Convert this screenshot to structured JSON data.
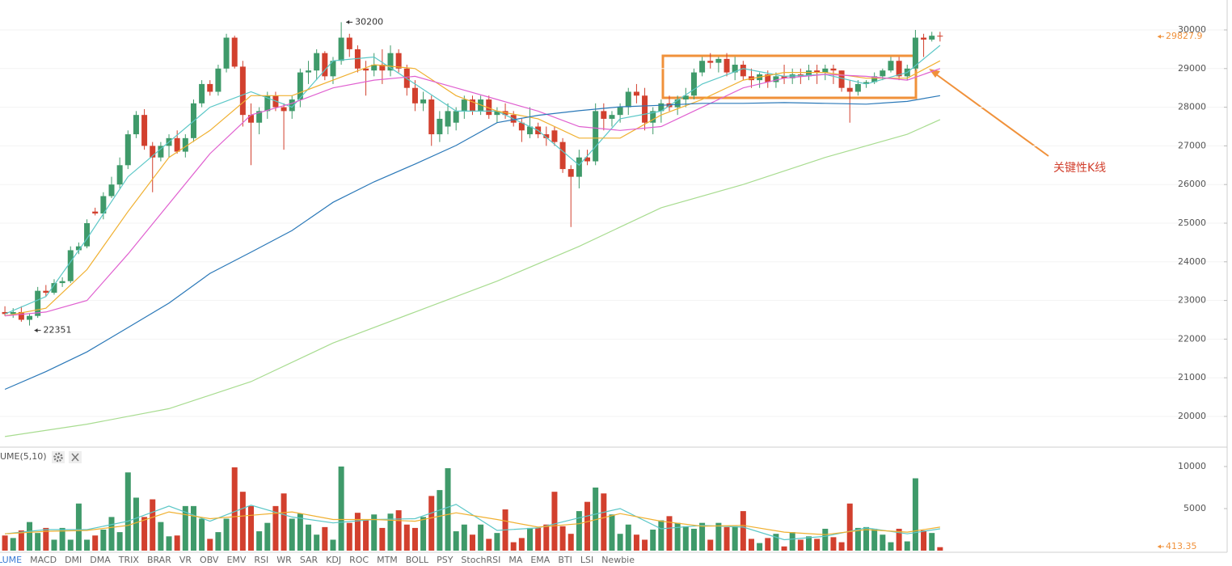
{
  "chart_data": [
    {
      "type": "candlestick",
      "open": [
        22700,
        22650,
        22700,
        22500,
        22600,
        23250,
        23200,
        23450,
        23500,
        24300,
        24400,
        25300,
        25250,
        25700,
        26000,
        26500,
        27300,
        27800,
        27000,
        26700,
        27000,
        27200,
        26850,
        27200,
        28100,
        28600,
        28400,
        29000,
        29800,
        29050,
        27800,
        27600,
        27900,
        28300,
        28000,
        27900,
        28200,
        28900,
        28950,
        29400,
        28800,
        29200,
        29800,
        29500,
        29000,
        28950,
        29100,
        28950,
        29400,
        29000,
        28500,
        28100,
        28200,
        27300,
        27500,
        27600,
        27900,
        28200,
        27900,
        28200,
        27800,
        27900,
        27800,
        27600,
        27300,
        27500,
        27300,
        27400,
        27100,
        26400,
        26200,
        26700,
        26600,
        27900,
        27700,
        27800,
        28000,
        28400,
        28300,
        27600,
        27900,
        28100,
        28000,
        28200,
        28300,
        28900,
        29200,
        29150,
        29250,
        28900,
        29100,
        28800,
        28700,
        28850,
        28650,
        28800,
        28750,
        28850,
        28800,
        28950,
        28900,
        29000,
        28950,
        28500,
        28400,
        28600,
        28650,
        28800,
        28950,
        29200,
        28800,
        29000,
        29800,
        29750,
        29850
      ],
      "high": [
        22850,
        22800,
        22850,
        22650,
        23350,
        23400,
        23550,
        23600,
        24400,
        24500,
        25100,
        25400,
        25800,
        26200,
        26700,
        27400,
        27900,
        27950,
        27100,
        27100,
        27300,
        27400,
        27300,
        28200,
        28700,
        28700,
        29100,
        29900,
        29850,
        29200,
        28100,
        28000,
        28400,
        28400,
        28100,
        28300,
        29000,
        29200,
        29500,
        29450,
        29300,
        30200,
        29900,
        29600,
        29200,
        29400,
        29500,
        29600,
        29500,
        29100,
        28700,
        28400,
        28300,
        27900,
        28100,
        28000,
        28300,
        28300,
        28300,
        28300,
        28000,
        28100,
        27900,
        27700,
        28000,
        27600,
        27500,
        27500,
        27200,
        26500,
        26900,
        26900,
        28100,
        28100,
        27900,
        28100,
        28500,
        28600,
        28500,
        28000,
        28200,
        28300,
        28300,
        28500,
        29000,
        29300,
        29400,
        29300,
        29400,
        29300,
        29200,
        29000,
        28900,
        28950,
        28900,
        29100,
        29000,
        29000,
        29100,
        29100,
        29100,
        29100,
        28950,
        28700,
        28700,
        28700,
        28900,
        29000,
        29300,
        29300,
        29100,
        30000,
        29900,
        29950,
        29950
      ],
      "low": [
        22600,
        22550,
        22450,
        22351,
        22550,
        23100,
        23150,
        23350,
        23450,
        24200,
        24350,
        25200,
        25100,
        25650,
        25900,
        26400,
        27200,
        26900,
        25800,
        26600,
        26700,
        26800,
        26700,
        27100,
        28000,
        28300,
        28300,
        28900,
        29000,
        27500,
        26500,
        27300,
        27700,
        27900,
        26900,
        27700,
        28000,
        28600,
        28700,
        28700,
        28600,
        29100,
        29300,
        28900,
        28300,
        28800,
        28600,
        28800,
        28900,
        28300,
        27900,
        27900,
        27000,
        27100,
        27300,
        27400,
        27700,
        27800,
        27800,
        27700,
        27600,
        27700,
        27500,
        27100,
        27200,
        27200,
        27000,
        27000,
        26300,
        24900,
        25900,
        26500,
        26500,
        27400,
        27500,
        27600,
        27800,
        28100,
        27400,
        27300,
        27600,
        27900,
        27800,
        28000,
        28200,
        28800,
        29000,
        28900,
        28800,
        28700,
        28700,
        28500,
        28500,
        28500,
        28500,
        28600,
        28600,
        28600,
        28700,
        28600,
        28700,
        28600,
        28400,
        27600,
        28300,
        28500,
        28600,
        28700,
        28900,
        28700,
        28700,
        28950,
        29300,
        29700,
        29700
      ],
      "close": [
        22650,
        22700,
        22500,
        22600,
        23250,
        23200,
        23450,
        23500,
        24300,
        24400,
        25000,
        25250,
        25700,
        26000,
        26500,
        27300,
        27800,
        27000,
        26700,
        27000,
        27200,
        26850,
        27200,
        28100,
        28600,
        28400,
        29000,
        29800,
        29050,
        27800,
        27600,
        27900,
        28300,
        28000,
        27900,
        28200,
        28900,
        28950,
        29400,
        28800,
        29200,
        29800,
        29500,
        29000,
        28950,
        29100,
        28950,
        29400,
        29000,
        28500,
        28100,
        28200,
        27300,
        27700,
        27900,
        27900,
        28200,
        27900,
        28200,
        27800,
        27900,
        27800,
        27600,
        27400,
        27500,
        27300,
        27200,
        27100,
        26400,
        26200,
        26700,
        26600,
        27900,
        27700,
        27800,
        28000,
        28400,
        28300,
        27600,
        27900,
        28100,
        28000,
        28200,
        28300,
        28900,
        29200,
        29150,
        29250,
        28900,
        29100,
        28800,
        28700,
        28850,
        28650,
        28800,
        28750,
        28850,
        28800,
        28950,
        28900,
        29000,
        28950,
        28500,
        28400,
        28600,
        28650,
        28800,
        28950,
        29200,
        28800,
        29000,
        29800,
        29750,
        29850,
        29827.9
      ],
      "up_color": "#3f9a6a",
      "down_color": "#d2402e",
      "price_color": "#f0913a",
      "xlim": [
        -0.6,
        149
      ],
      "ylim": [
        19226,
        30774
      ],
      "yticks": [
        20000,
        21000,
        22000,
        23000,
        24000,
        25000,
        26000,
        27000,
        28000,
        29000,
        30000
      ],
      "grid": true,
      "series": [
        {
          "color": "#5bc7c7",
          "x": [
            0,
            5,
            10,
            15,
            20,
            25,
            30,
            35,
            40,
            45,
            50,
            55,
            60,
            65,
            70,
            75,
            80,
            85,
            90,
            95,
            100,
            105,
            110,
            114
          ],
          "values": [
            22650,
            23100,
            24600,
            26200,
            27100,
            28000,
            28400,
            28000,
            29200,
            29300,
            28600,
            27900,
            27900,
            27400,
            26500,
            27700,
            27900,
            28600,
            29000,
            28800,
            28850,
            28600,
            28900,
            29600
          ]
        },
        {
          "color": "#f0b030",
          "x": [
            0,
            5,
            10,
            15,
            20,
            25,
            30,
            35,
            40,
            45,
            50,
            55,
            60,
            65,
            70,
            75,
            80,
            85,
            90,
            95,
            100,
            105,
            110,
            114
          ],
          "values": [
            22600,
            22800,
            23800,
            25300,
            26700,
            27400,
            28300,
            28300,
            28700,
            29100,
            29000,
            28300,
            27900,
            27700,
            27200,
            27200,
            27800,
            28200,
            28700,
            28900,
            28900,
            28750,
            28750,
            29200
          ]
        },
        {
          "color": "#e060d0",
          "x": [
            0,
            5,
            10,
            15,
            20,
            25,
            30,
            35,
            40,
            45,
            50,
            55,
            60,
            65,
            70,
            75,
            80,
            85,
            90,
            95,
            100,
            105,
            110,
            114
          ],
          "values": [
            22600,
            22700,
            23000,
            24200,
            25500,
            26800,
            27800,
            28100,
            28500,
            28700,
            28800,
            28500,
            28200,
            27900,
            27500,
            27400,
            27500,
            28000,
            28500,
            28750,
            28850,
            28800,
            28700,
            29000
          ]
        },
        {
          "color": "#2a78b8",
          "x": [
            0,
            5,
            10,
            15,
            20,
            25,
            30,
            35,
            40,
            45,
            50,
            55,
            60,
            65,
            70,
            75,
            80,
            85,
            90,
            95,
            100,
            105,
            110,
            114
          ],
          "values": [
            20700,
            21160,
            21670,
            22300,
            22930,
            23700,
            24250,
            24810,
            25540,
            26070,
            26530,
            27010,
            27600,
            27790,
            27910,
            28010,
            28050,
            28100,
            28100,
            28120,
            28100,
            28080,
            28150,
            28300
          ]
        },
        {
          "color": "#a8dc90",
          "x": [
            0,
            10,
            20,
            30,
            40,
            50,
            60,
            70,
            80,
            90,
            100,
            110,
            114
          ],
          "values": [
            19480,
            19800,
            20200,
            20900,
            21900,
            22700,
            23500,
            24400,
            25400,
            26000,
            26700,
            27300,
            27680
          ]
        }
      ],
      "annotation": "关键性K线"
    },
    {
      "type": "bar",
      "title": "UME(5,10)",
      "values": [
        1800,
        1500,
        2400,
        3400,
        2100,
        2700,
        1300,
        2700,
        1300,
        5600,
        1300,
        1800,
        2500,
        4000,
        2200,
        9300,
        6300,
        4000,
        6100,
        3400,
        1700,
        1800,
        5300,
        5300,
        3800,
        1400,
        2200,
        3800,
        9900,
        7000,
        5300,
        2300,
        3300,
        5300,
        6800,
        3800,
        4400,
        3100,
        1900,
        2800,
        1300,
        10000,
        3300,
        4500,
        3600,
        4300,
        2700,
        4400,
        4800,
        3100,
        2700,
        4000,
        6500,
        7200,
        9800,
        2300,
        3100,
        1900,
        3100,
        1400,
        2100,
        4900,
        1000,
        1500,
        2700,
        2700,
        3100,
        7000,
        2900,
        2000,
        4700,
        5800,
        7500,
        6800,
        4300,
        2000,
        3100,
        1900,
        1300,
        2500,
        3600,
        4100,
        3300,
        2900,
        2600,
        3300,
        1300,
        3300,
        2800,
        2900,
        4700,
        1400,
        900,
        1500,
        2000,
        500,
        2200,
        1300,
        1700,
        1400,
        2600,
        1600,
        1000,
        5600,
        2700,
        2800,
        2600,
        1900,
        1000,
        2600,
        1100,
        8600,
        2400,
        2100,
        413.35
      ],
      "ylim": [
        0,
        11920
      ],
      "yticks": [
        5000,
        10000
      ],
      "series": [
        {
          "color": "#5bc7c7",
          "x": [
            0,
            5,
            10,
            15,
            20,
            25,
            30,
            35,
            40,
            45,
            50,
            55,
            60,
            65,
            70,
            75,
            80,
            85,
            90,
            95,
            100,
            105,
            110,
            114
          ],
          "values": [
            2000,
            2500,
            2500,
            3500,
            5300,
            3500,
            5400,
            4000,
            3300,
            3700,
            3800,
            5500,
            2400,
            2700,
            3900,
            5000,
            2600,
            3000,
            2800,
            1300,
            1700,
            2700,
            2000,
            2600
          ]
        },
        {
          "color": "#f0b030",
          "x": [
            0,
            5,
            10,
            15,
            20,
            25,
            30,
            35,
            40,
            45,
            50,
            55,
            60,
            65,
            70,
            75,
            80,
            85,
            90,
            95,
            100,
            105,
            110,
            114
          ],
          "values": [
            2000,
            2300,
            2400,
            3000,
            4600,
            3800,
            4200,
            4600,
            3700,
            3700,
            3500,
            4500,
            3700,
            2800,
            3200,
            4400,
            3500,
            2900,
            3000,
            2200,
            1900,
            2500,
            2200,
            2800
          ]
        }
      ]
    }
  ],
  "indicator_tabs": [
    "LUME",
    "MACD",
    "DMI",
    "DMA",
    "TRIX",
    "BRAR",
    "VR",
    "OBV",
    "EMV",
    "RSI",
    "WR",
    "SAR",
    "KDJ",
    "ROC",
    "MTM",
    "BOLL",
    "PSY",
    "StochRSI",
    "MA",
    "EMA",
    "BTI",
    "LSI",
    "Newbie"
  ]
}
